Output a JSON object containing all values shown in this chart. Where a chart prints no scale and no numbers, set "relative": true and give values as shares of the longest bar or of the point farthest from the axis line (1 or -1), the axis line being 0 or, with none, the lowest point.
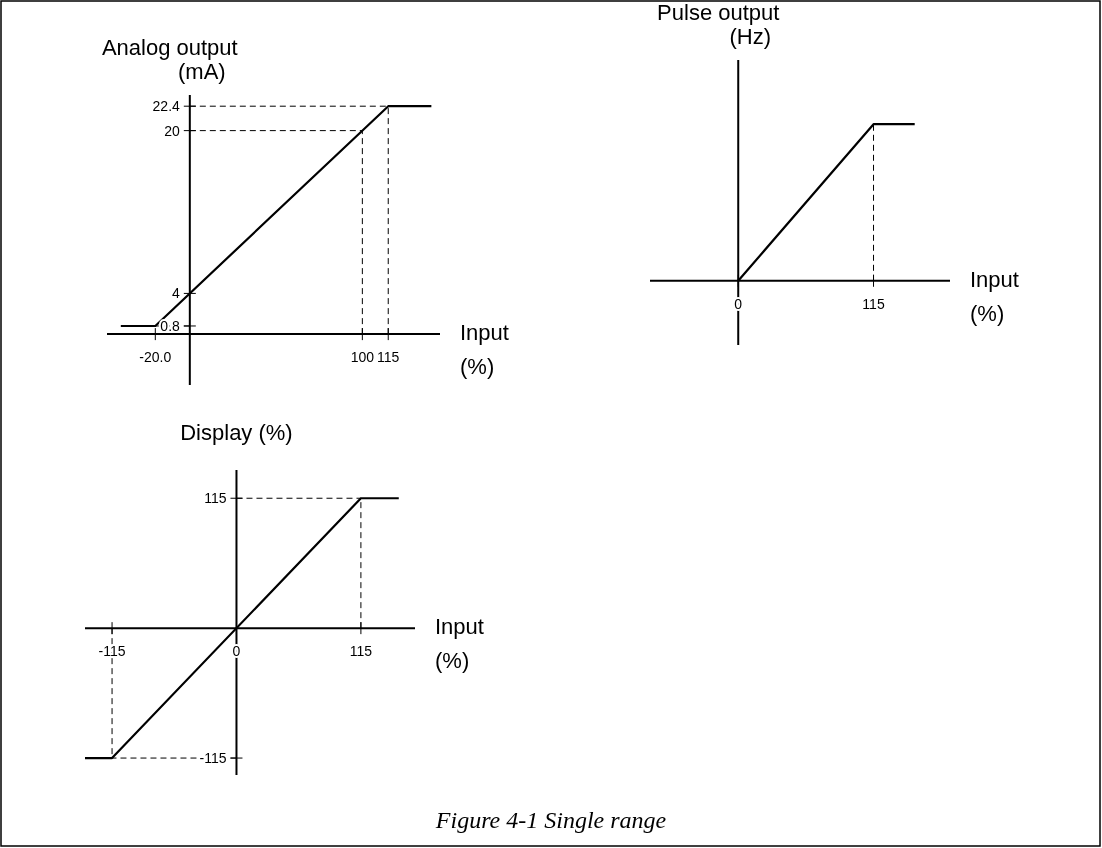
{
  "chart_data": [
    {
      "type": "line",
      "ylabel": "Analog output (mA)",
      "xlabel": "Input (%)",
      "x": [
        -40,
        -20,
        115,
        140
      ],
      "series": [
        {
          "color": "#000000",
          "values": [
            0.8,
            0.8,
            22.4,
            22.4
          ]
        }
      ],
      "xlim": [
        -48,
        145
      ],
      "ylim": [
        -5,
        23.5
      ],
      "xticks": [
        {
          "value": -20,
          "label": "-20.0"
        },
        100,
        115
      ],
      "yticks": [
        0.8,
        4,
        20,
        22.4
      ],
      "ref_lines": [
        {
          "axis": "x",
          "value": 100,
          "line_style": "dashed"
        },
        {
          "axis": "x",
          "value": 115,
          "line_style": "dashed"
        },
        {
          "axis": "y",
          "value": 0.8,
          "line_style": "dashed"
        },
        {
          "axis": "y",
          "value": 20,
          "line_style": "dashed"
        },
        {
          "axis": "y",
          "value": 22.4,
          "line_style": "dashed"
        }
      ]
    },
    {
      "type": "line",
      "ylabel": "Pulse output (Hz)",
      "xlabel": "Input (%)",
      "x": [
        0,
        115,
        150
      ],
      "relative": true,
      "series": [
        {
          "color": "#000000",
          "values": [
            0,
            1,
            1
          ]
        }
      ],
      "xlim": [
        -75,
        180
      ],
      "xticks": [
        0,
        115
      ],
      "ref_lines": [
        {
          "axis": "x",
          "value": 115,
          "line_style": "dashed"
        }
      ]
    },
    {
      "type": "line",
      "ylabel": "Display (%)",
      "xlabel": "Input (%)",
      "x": [
        -140,
        -115,
        115,
        150
      ],
      "series": [
        {
          "color": "#000000",
          "values": [
            -115,
            -115,
            115,
            115
          ]
        }
      ],
      "xlim": [
        -140,
        165
      ],
      "ylim": [
        -130,
        140
      ],
      "xticks": [
        -115,
        0,
        115
      ],
      "yticks": [
        115,
        -115
      ],
      "ref_lines": [
        {
          "axis": "x",
          "value": -115,
          "line_style": "dashed"
        },
        {
          "axis": "x",
          "value": 115,
          "line_style": "dashed"
        },
        {
          "axis": "y",
          "value": 115,
          "line_style": "dashed"
        },
        {
          "axis": "y",
          "value": -115,
          "line_style": "dashed"
        }
      ],
      "annotations": [
        "Figure 4-1 Single range"
      ]
    }
  ]
}
